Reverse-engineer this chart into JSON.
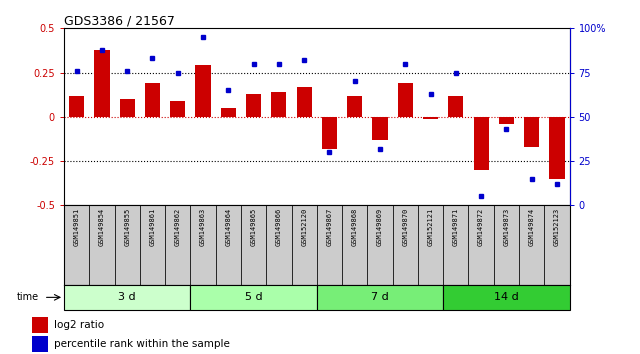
{
  "title": "GDS3386 / 21567",
  "samples": [
    "GSM149851",
    "GSM149854",
    "GSM149855",
    "GSM149861",
    "GSM149862",
    "GSM149863",
    "GSM149864",
    "GSM149865",
    "GSM149866",
    "GSM152120",
    "GSM149867",
    "GSM149868",
    "GSM149869",
    "GSM149870",
    "GSM152121",
    "GSM149871",
    "GSM149872",
    "GSM149873",
    "GSM149874",
    "GSM152123"
  ],
  "log2_ratio": [
    0.12,
    0.38,
    0.1,
    0.19,
    0.09,
    0.29,
    0.05,
    0.13,
    0.14,
    0.17,
    -0.18,
    0.12,
    -0.13,
    0.19,
    -0.01,
    0.12,
    -0.3,
    -0.04,
    -0.17,
    -0.35
  ],
  "percentile": [
    76,
    88,
    76,
    83,
    75,
    95,
    65,
    80,
    80,
    82,
    30,
    70,
    32,
    80,
    63,
    75,
    5,
    43,
    15,
    12
  ],
  "groups": [
    {
      "label": "3 d",
      "start": 0,
      "end": 5,
      "color": "#ccffcc"
    },
    {
      "label": "5 d",
      "start": 5,
      "end": 10,
      "color": "#aaffaa"
    },
    {
      "label": "7 d",
      "start": 10,
      "end": 15,
      "color": "#77ee77"
    },
    {
      "label": "14 d",
      "start": 15,
      "end": 20,
      "color": "#33cc33"
    }
  ],
  "bar_color": "#cc0000",
  "dot_color": "#0000cc",
  "hline_color": "#cc0000",
  "dotted_color": "#000000",
  "ylim_left": [
    -0.5,
    0.5
  ],
  "ylim_right": [
    0,
    100
  ],
  "yticks_left": [
    -0.5,
    -0.25,
    0.0,
    0.25,
    0.5
  ],
  "ytick_labels_left": [
    "-0.5",
    "-0.25",
    "0",
    "0.25",
    "0.5"
  ],
  "yticks_right": [
    0,
    25,
    50,
    75,
    100
  ],
  "ytick_labels_right": [
    "0",
    "25",
    "50",
    "75",
    "100%"
  ],
  "fig_width": 6.4,
  "fig_height": 3.54,
  "dpi": 100
}
